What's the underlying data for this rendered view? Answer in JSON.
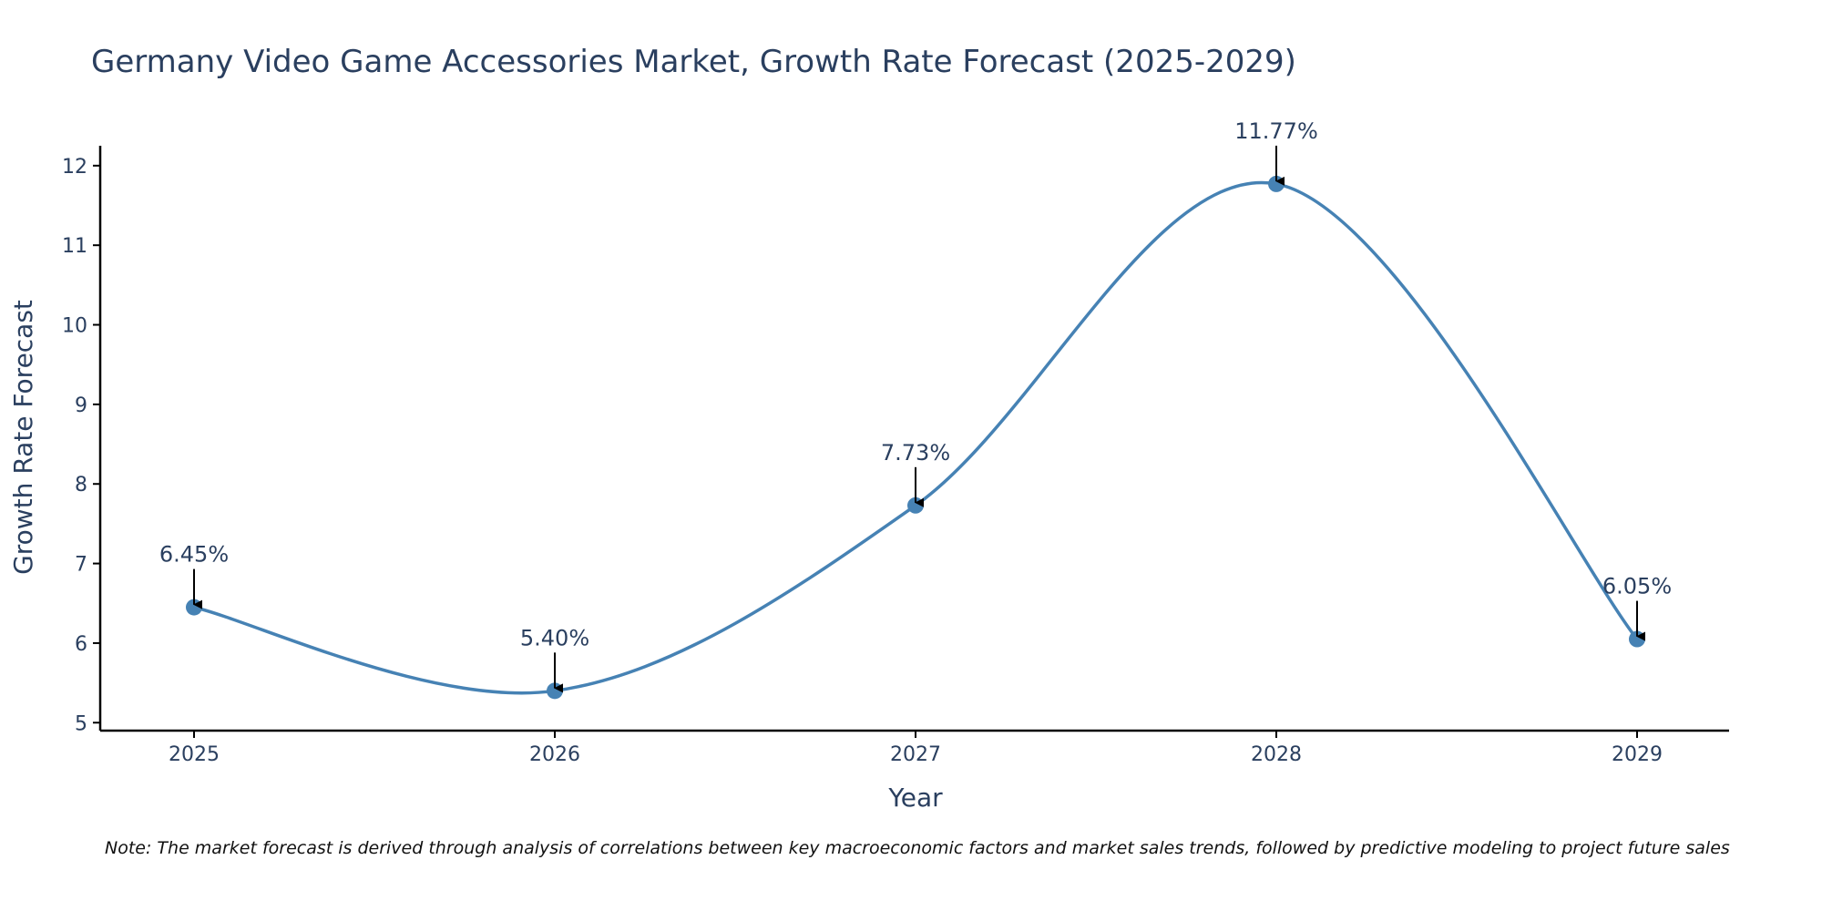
{
  "chart_data": {
    "type": "line",
    "title": "Germany Video Game Accessories Market, Growth Rate Forecast (2025-2029)",
    "xlabel": "Year",
    "ylabel": "Growth Rate Forecast",
    "categories": [
      "2025",
      "2026",
      "2027",
      "2028",
      "2029"
    ],
    "series": [
      {
        "name": "Growth Rate Forecast",
        "values": [
          6.45,
          5.4,
          7.73,
          11.77,
          6.05
        ],
        "labels": [
          "6.45%",
          "5.40%",
          "7.73%",
          "11.77%",
          "6.05%"
        ],
        "color": "#4682b4"
      }
    ],
    "ylim": [
      4.9,
      12.25
    ],
    "yticks": [
      5,
      6,
      7,
      8,
      9,
      10,
      11,
      12
    ],
    "grid": false,
    "line_shape": "spline"
  },
  "note": "Note: The market forecast is derived through analysis of correlations between key macroeconomic factors and market sales trends, followed by predictive modeling to project future sales"
}
